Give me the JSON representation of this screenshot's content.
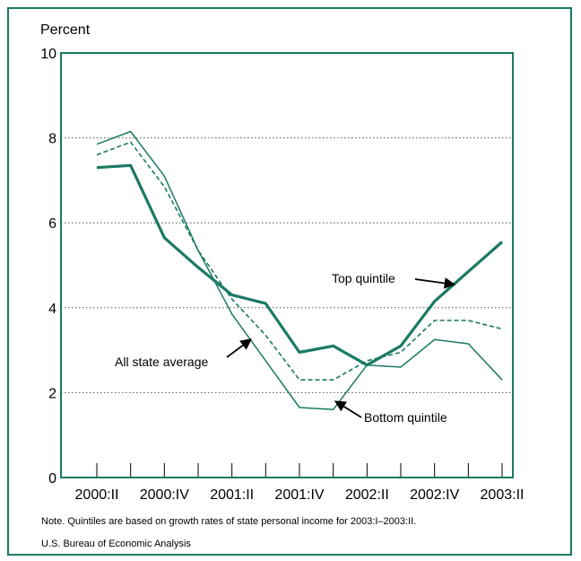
{
  "chart_data": {
    "type": "line",
    "ylabel": "Percent",
    "xlabel": "",
    "title": "",
    "ylim": [
      0,
      10
    ],
    "yticks": [
      0,
      2,
      4,
      6,
      8,
      10
    ],
    "x": [
      "2000:II",
      "2000:III",
      "2000:IV",
      "2001:I",
      "2001:II",
      "2001:III",
      "2001:IV",
      "2002:I",
      "2002:II",
      "2002:III",
      "2002:IV",
      "2003:I",
      "2003:II"
    ],
    "xtick_labels": [
      "2000:II",
      "2000:IV",
      "2001:II",
      "2001:IV",
      "2002:II",
      "2002:IV",
      "2003:II"
    ],
    "grid": "horizontal dotted",
    "series": [
      {
        "name": "Top quintile",
        "style": "thick",
        "color": "#1a7a63",
        "values": [
          7.3,
          7.35,
          5.65,
          4.95,
          4.3,
          4.1,
          2.95,
          3.1,
          2.65,
          3.1,
          4.15,
          4.85,
          5.55
        ]
      },
      {
        "name": "All state average",
        "style": "dashed",
        "color": "#1a7a63",
        "values": [
          7.6,
          7.9,
          6.85,
          5.35,
          4.2,
          3.35,
          2.3,
          2.3,
          2.75,
          2.95,
          3.7,
          3.7,
          3.5
        ]
      },
      {
        "name": "Bottom quintile",
        "style": "thin",
        "color": "#1a7a63",
        "values": [
          7.85,
          8.15,
          7.1,
          5.35,
          3.85,
          2.75,
          1.65,
          1.6,
          2.65,
          2.6,
          3.25,
          3.15,
          2.3
        ]
      }
    ],
    "annotations": [
      {
        "text": "Top quintile",
        "series": "Top quintile"
      },
      {
        "text": "All state average",
        "series": "All state average"
      },
      {
        "text": "Bottom quintile",
        "series": "Bottom quintile"
      }
    ]
  },
  "notes": {
    "note": "Note. Quintiles are based on growth rates of state personal income for 2003:I–2003:II.",
    "source": "U.S. Bureau of Economic Analysis"
  },
  "colors": {
    "frame": "#1a7a63",
    "line": "#1a7a63",
    "text": "#000000"
  }
}
